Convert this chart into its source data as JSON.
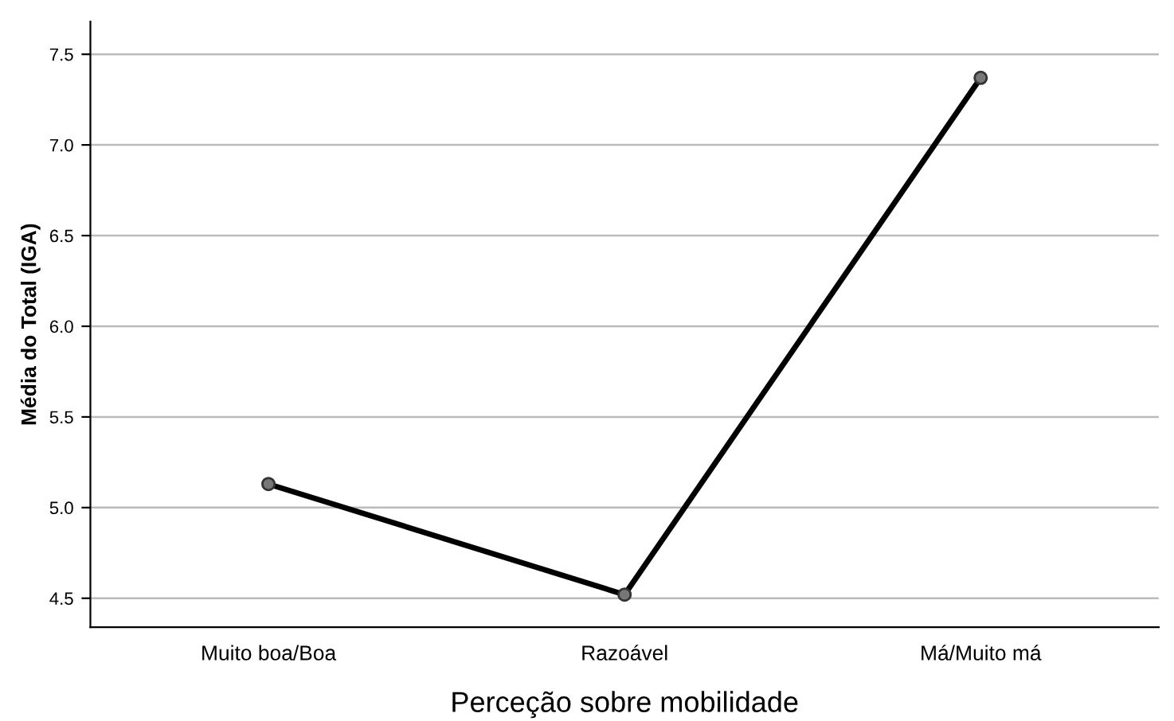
{
  "chart_data": {
    "type": "line",
    "xlabel": "Perceção sobre mobilidade",
    "ylabel": "Média do Total (IGA)",
    "categories": [
      "Muito boa/Boa",
      "Razoável",
      "Má/Muito má"
    ],
    "series": [
      {
        "color": "#000000",
        "values": [
          5.13,
          4.52,
          7.37
        ]
      }
    ],
    "ylim": [
      4.34,
      7.68
    ],
    "yticks": [
      4.5,
      {
        "value": 5,
        "label": "5.0"
      },
      5.5,
      {
        "value": 6,
        "label": "6.0"
      },
      6.5,
      {
        "value": 7,
        "label": "7.0"
      },
      7.5
    ],
    "grid": "y",
    "marker": "circle",
    "line_style": "solid"
  }
}
